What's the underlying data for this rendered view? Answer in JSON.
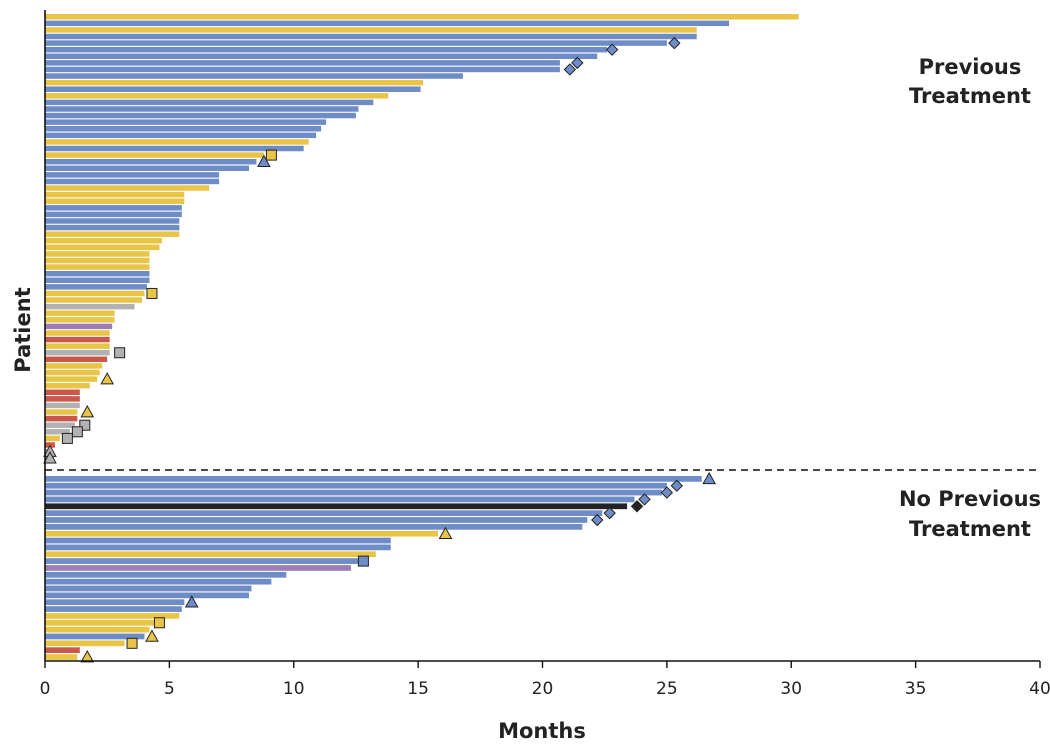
{
  "colors": {
    "yellow": "#E8C547",
    "blue": "#6E8DC7",
    "red": "#C9584A",
    "gray": "#B2B2B2",
    "purple": "#9B7DB8",
    "black": "#222222"
  },
  "chart_data": {
    "type": "bar",
    "orientation": "horizontal",
    "xlabel": "Months",
    "ylabel": "Patient",
    "xlim": [
      0,
      40
    ],
    "xticks": [
      0,
      5,
      10,
      15,
      20,
      25,
      30,
      35,
      40
    ],
    "grid": false,
    "groups": [
      {
        "label_lines": [
          "Previous",
          "Treatment"
        ],
        "bars": [
          {
            "value": 30.3,
            "color": "yellow"
          },
          {
            "value": 27.5,
            "color": "blue"
          },
          {
            "value": 26.2,
            "color": "yellow"
          },
          {
            "value": 26.2,
            "color": "blue"
          },
          {
            "value": 25.0,
            "color": "blue",
            "marker": "diamond",
            "marker_value": 25.3,
            "marker_color": "blue"
          },
          {
            "value": 22.6,
            "color": "blue",
            "marker": "diamond",
            "marker_value": 22.8,
            "marker_color": "blue"
          },
          {
            "value": 22.2,
            "color": "blue"
          },
          {
            "value": 20.7,
            "color": "blue",
            "marker": "diamond",
            "marker_value": 21.4,
            "marker_color": "blue"
          },
          {
            "value": 20.7,
            "color": "blue",
            "marker": "diamond",
            "marker_value": 21.1,
            "marker_color": "blue"
          },
          {
            "value": 16.8,
            "color": "blue"
          },
          {
            "value": 15.2,
            "color": "yellow"
          },
          {
            "value": 15.1,
            "color": "blue"
          },
          {
            "value": 13.8,
            "color": "yellow"
          },
          {
            "value": 13.2,
            "color": "blue"
          },
          {
            "value": 12.6,
            "color": "blue"
          },
          {
            "value": 12.5,
            "color": "blue"
          },
          {
            "value": 11.3,
            "color": "blue"
          },
          {
            "value": 11.1,
            "color": "blue"
          },
          {
            "value": 10.9,
            "color": "blue"
          },
          {
            "value": 10.6,
            "color": "yellow"
          },
          {
            "value": 10.4,
            "color": "blue"
          },
          {
            "value": 8.8,
            "color": "yellow",
            "marker": "square",
            "marker_value": 9.1,
            "marker_color": "yellow"
          },
          {
            "value": 8.5,
            "color": "blue",
            "marker": "triangle",
            "marker_value": 8.8,
            "marker_color": "blue"
          },
          {
            "value": 8.2,
            "color": "blue"
          },
          {
            "value": 7.0,
            "color": "blue"
          },
          {
            "value": 7.0,
            "color": "blue"
          },
          {
            "value": 6.6,
            "color": "yellow"
          },
          {
            "value": 5.6,
            "color": "yellow"
          },
          {
            "value": 5.6,
            "color": "yellow"
          },
          {
            "value": 5.5,
            "color": "blue"
          },
          {
            "value": 5.5,
            "color": "blue"
          },
          {
            "value": 5.4,
            "color": "blue"
          },
          {
            "value": 5.4,
            "color": "blue"
          },
          {
            "value": 5.4,
            "color": "yellow"
          },
          {
            "value": 4.7,
            "color": "yellow"
          },
          {
            "value": 4.6,
            "color": "yellow"
          },
          {
            "value": 4.2,
            "color": "yellow"
          },
          {
            "value": 4.2,
            "color": "yellow"
          },
          {
            "value": 4.2,
            "color": "yellow"
          },
          {
            "value": 4.2,
            "color": "blue"
          },
          {
            "value": 4.2,
            "color": "blue"
          },
          {
            "value": 4.1,
            "color": "blue"
          },
          {
            "value": 4.0,
            "color": "yellow",
            "marker": "square",
            "marker_value": 4.3,
            "marker_color": "yellow"
          },
          {
            "value": 3.9,
            "color": "yellow"
          },
          {
            "value": 3.6,
            "color": "gray"
          },
          {
            "value": 2.8,
            "color": "yellow"
          },
          {
            "value": 2.8,
            "color": "yellow"
          },
          {
            "value": 2.7,
            "color": "purple"
          },
          {
            "value": 2.6,
            "color": "yellow"
          },
          {
            "value": 2.6,
            "color": "red"
          },
          {
            "value": 2.6,
            "color": "yellow"
          },
          {
            "value": 2.6,
            "color": "gray",
            "marker": "square",
            "marker_value": 3.0,
            "marker_color": "gray"
          },
          {
            "value": 2.5,
            "color": "red"
          },
          {
            "value": 2.3,
            "color": "yellow"
          },
          {
            "value": 2.2,
            "color": "yellow"
          },
          {
            "value": 2.1,
            "color": "yellow",
            "marker": "triangle",
            "marker_value": 2.5,
            "marker_color": "yellow"
          },
          {
            "value": 1.8,
            "color": "yellow"
          },
          {
            "value": 1.4,
            "color": "red"
          },
          {
            "value": 1.4,
            "color": "red"
          },
          {
            "value": 1.4,
            "color": "gray"
          },
          {
            "value": 1.3,
            "color": "yellow",
            "marker": "triangle",
            "marker_value": 1.7,
            "marker_color": "yellow"
          },
          {
            "value": 1.3,
            "color": "red"
          },
          {
            "value": 1.2,
            "color": "gray",
            "marker": "square",
            "marker_value": 1.6,
            "marker_color": "gray"
          },
          {
            "value": 1.0,
            "color": "gray",
            "marker": "square",
            "marker_value": 1.3,
            "marker_color": "gray"
          },
          {
            "value": 0.6,
            "color": "yellow",
            "marker": "square",
            "marker_value": 0.9,
            "marker_color": "gray"
          },
          {
            "value": 0.4,
            "color": "red"
          },
          {
            "value": 0.1,
            "color": "gray",
            "marker": "triangle",
            "marker_value": 0.2,
            "marker_color": "gray"
          },
          {
            "value": 0.1,
            "color": "gray",
            "marker": "triangle",
            "marker_value": 0.2,
            "marker_color": "gray"
          }
        ]
      },
      {
        "label_lines": [
          "No Previous",
          "Treatment"
        ],
        "bars": [
          {
            "value": 26.4,
            "color": "blue",
            "marker": "triangle",
            "marker_value": 26.7,
            "marker_color": "blue"
          },
          {
            "value": 25.0,
            "color": "blue",
            "marker": "diamond",
            "marker_value": 25.4,
            "marker_color": "blue"
          },
          {
            "value": 24.8,
            "color": "blue",
            "marker": "diamond",
            "marker_value": 25.0,
            "marker_color": "blue"
          },
          {
            "value": 23.7,
            "color": "blue",
            "marker": "diamond",
            "marker_value": 24.1,
            "marker_color": "blue"
          },
          {
            "value": 23.4,
            "color": "black",
            "marker": "diamond",
            "marker_value": 23.8,
            "marker_color": "black"
          },
          {
            "value": 22.4,
            "color": "blue",
            "marker": "diamond",
            "marker_value": 22.7,
            "marker_color": "blue"
          },
          {
            "value": 21.8,
            "color": "blue",
            "marker": "diamond",
            "marker_value": 22.2,
            "marker_color": "blue"
          },
          {
            "value": 21.6,
            "color": "blue"
          },
          {
            "value": 15.8,
            "color": "yellow",
            "marker": "triangle",
            "marker_value": 16.1,
            "marker_color": "yellow"
          },
          {
            "value": 13.9,
            "color": "blue"
          },
          {
            "value": 13.9,
            "color": "blue"
          },
          {
            "value": 13.3,
            "color": "yellow"
          },
          {
            "value": 12.6,
            "color": "blue",
            "marker": "square",
            "marker_value": 12.8,
            "marker_color": "blue"
          },
          {
            "value": 12.3,
            "color": "purple"
          },
          {
            "value": 9.7,
            "color": "blue"
          },
          {
            "value": 9.1,
            "color": "blue"
          },
          {
            "value": 8.3,
            "color": "blue"
          },
          {
            "value": 8.2,
            "color": "blue"
          },
          {
            "value": 5.6,
            "color": "blue",
            "marker": "triangle",
            "marker_value": 5.9,
            "marker_color": "blue"
          },
          {
            "value": 5.5,
            "color": "blue"
          },
          {
            "value": 5.4,
            "color": "yellow"
          },
          {
            "value": 4.4,
            "color": "yellow",
            "marker": "square",
            "marker_value": 4.6,
            "marker_color": "yellow"
          },
          {
            "value": 4.2,
            "color": "yellow"
          },
          {
            "value": 4.0,
            "color": "blue",
            "marker": "triangle",
            "marker_value": 4.3,
            "marker_color": "yellow"
          },
          {
            "value": 3.2,
            "color": "yellow",
            "marker": "square",
            "marker_value": 3.5,
            "marker_color": "yellow"
          },
          {
            "value": 1.4,
            "color": "red"
          },
          {
            "value": 1.3,
            "color": "yellow",
            "marker": "triangle",
            "marker_value": 1.7,
            "marker_color": "yellow"
          }
        ]
      }
    ]
  }
}
